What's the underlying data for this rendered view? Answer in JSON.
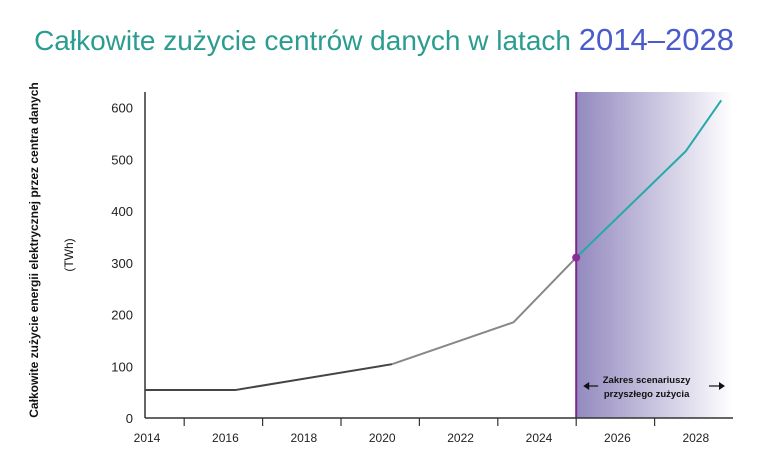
{
  "title": {
    "main": "Całkowite zużycie centrów danych w latach",
    "years": "2014–2028"
  },
  "chart_data": {
    "type": "line",
    "ylabel_line1": "Całkowite zużycie energii elektrycznej przez centra danych",
    "ylabel_line2": "(TWh)",
    "xlim": [
      2014,
      2029
    ],
    "ylim": [
      0,
      630
    ],
    "y_ticks": [
      0,
      100,
      200,
      300,
      400,
      500,
      600
    ],
    "x_ticks": [
      2014,
      2016,
      2018,
      2020,
      2022,
      2024,
      2026,
      2028
    ],
    "series": [
      {
        "color": "#444444",
        "x": [
          2014,
          2016.3,
          2020.3
        ],
        "y": [
          54,
          54,
          104
        ]
      },
      {
        "color": "#888888",
        "x": [
          2020.3,
          2023.4,
          2025
        ],
        "y": [
          104,
          185,
          310
        ]
      },
      {
        "color": "#26a9a9",
        "x": [
          2025,
          2027.8,
          2028.7
        ],
        "y": [
          310,
          516,
          614
        ]
      }
    ],
    "marker": {
      "x": 2025,
      "y": 310,
      "color": "#8a2b9a"
    },
    "scenario_region": {
      "x_start": 2025,
      "x_end": 2029,
      "line_color": "#7b2a8c",
      "gradient_from": "#9389bf",
      "gradient_to": "#ffffff",
      "label_line1": "Zakres scenariuszy",
      "label_line2": "przyszłego zużycia"
    },
    "grid": false
  }
}
